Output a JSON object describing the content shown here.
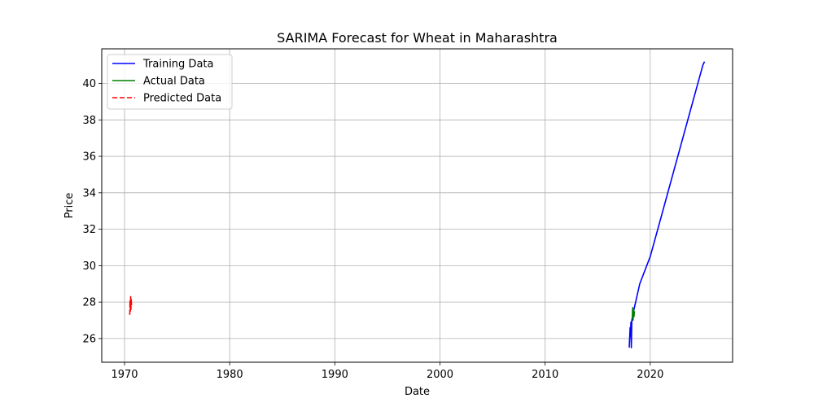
{
  "chart_data": {
    "type": "line",
    "title": "SARIMA Forecast for Wheat in Maharashtra",
    "xlabel": "Date",
    "ylabel": "Price",
    "x_axis_type": "date",
    "xlim": [
      "1967-11-01",
      "2027-11-01"
    ],
    "ylim": [
      24.7,
      41.9
    ],
    "xticks": [
      {
        "value": "1970-01-01",
        "label": "1970"
      },
      {
        "value": "1980-01-01",
        "label": "1980"
      },
      {
        "value": "1990-01-01",
        "label": "1990"
      },
      {
        "value": "2000-01-01",
        "label": "2000"
      },
      {
        "value": "2010-01-01",
        "label": "2010"
      },
      {
        "value": "2020-01-01",
        "label": "2020"
      }
    ],
    "yticks": [
      {
        "value": 26,
        "label": "26"
      },
      {
        "value": 28,
        "label": "28"
      },
      {
        "value": 30,
        "label": "30"
      },
      {
        "value": 32,
        "label": "32"
      },
      {
        "value": 34,
        "label": "34"
      },
      {
        "value": 36,
        "label": "36"
      },
      {
        "value": 38,
        "label": "38"
      },
      {
        "value": 40,
        "label": "40"
      }
    ],
    "grid": true,
    "legend_position": "top-left",
    "series": [
      {
        "name": "Training Data",
        "color": "#0000ff",
        "style": "solid",
        "points": [
          {
            "x": "2018-01-01",
            "y": 25.5
          },
          {
            "x": "2018-02-01",
            "y": 26.6
          },
          {
            "x": "2018-02-15",
            "y": 26.1
          },
          {
            "x": "2018-03-01",
            "y": 26.9
          },
          {
            "x": "2018-03-15",
            "y": 25.5
          },
          {
            "x": "2018-04-01",
            "y": 27.0
          },
          {
            "x": "2018-06-01",
            "y": 27.5
          },
          {
            "x": "2019-01-01",
            "y": 29.0
          },
          {
            "x": "2020-01-01",
            "y": 30.5
          },
          {
            "x": "2021-01-01",
            "y": 32.6
          },
          {
            "x": "2022-01-01",
            "y": 34.7
          },
          {
            "x": "2023-01-01",
            "y": 36.8
          },
          {
            "x": "2024-01-01",
            "y": 38.9
          },
          {
            "x": "2025-01-01",
            "y": 41.0
          },
          {
            "x": "2025-03-01",
            "y": 41.2
          }
        ]
      },
      {
        "name": "Actual Data",
        "color": "#008000",
        "style": "solid",
        "points": [
          {
            "x": "2018-04-15",
            "y": 27.1
          },
          {
            "x": "2018-05-01",
            "y": 27.7
          },
          {
            "x": "2018-05-15",
            "y": 27.0
          },
          {
            "x": "2018-06-01",
            "y": 27.6
          },
          {
            "x": "2018-06-15",
            "y": 27.2
          },
          {
            "x": "2018-07-01",
            "y": 27.5
          }
        ]
      },
      {
        "name": "Predicted Data",
        "color": "#ff0000",
        "style": "dashed",
        "points": [
          {
            "x": "1970-07-01",
            "y": 27.3
          },
          {
            "x": "1970-07-10",
            "y": 28.1
          },
          {
            "x": "1970-07-20",
            "y": 27.5
          },
          {
            "x": "1970-08-01",
            "y": 28.3
          },
          {
            "x": "1970-08-10",
            "y": 27.6
          },
          {
            "x": "1970-08-20",
            "y": 28.2
          },
          {
            "x": "1970-09-01",
            "y": 27.8
          }
        ]
      }
    ]
  }
}
